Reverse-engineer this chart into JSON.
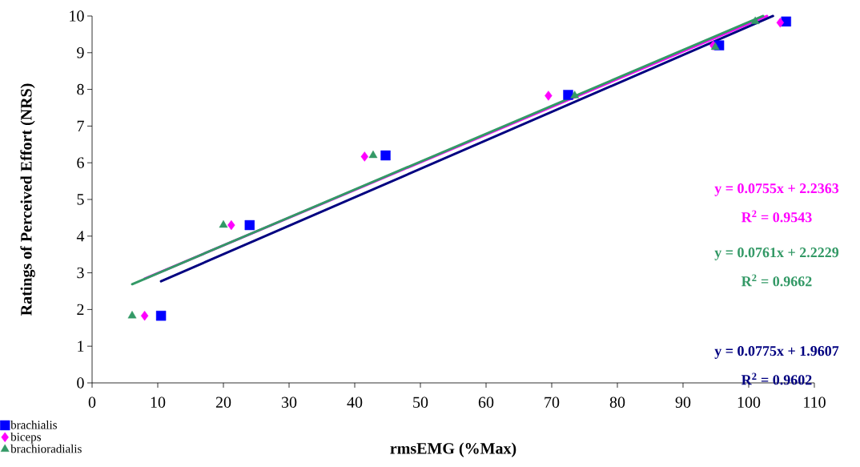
{
  "chart_data": {
    "type": "scatter",
    "xlabel": "rmsEMG (%Max)",
    "ylabel": "Ratings of Perceived Effort (NRS)",
    "xlim": [
      0,
      110
    ],
    "xticks": [
      0,
      10,
      20,
      30,
      40,
      50,
      60,
      70,
      80,
      90,
      100,
      110
    ],
    "ylim": [
      0,
      10
    ],
    "yticks": [
      0,
      1,
      2,
      3,
      4,
      5,
      6,
      7,
      8,
      9,
      10
    ],
    "grid": false,
    "legend": "bottom left",
    "series": [
      {
        "name": "brachialis",
        "marker": "square",
        "color": "#0000ff",
        "x": [
          10.5,
          24,
          44.7,
          72.5,
          95.5,
          105.7
        ],
        "values": [
          1.83,
          4.3,
          6.2,
          7.85,
          9.2,
          9.85
        ]
      },
      {
        "name": "biceps",
        "marker": "diamond",
        "color": "#ff00ff",
        "x": [
          8,
          21.2,
          41.5,
          69.5,
          94.6,
          104.8
        ],
        "values": [
          1.83,
          4.3,
          6.17,
          7.83,
          9.2,
          9.82
        ]
      },
      {
        "name": "brachioradialis",
        "marker": "triangle",
        "color": "#339966",
        "x": [
          6.1,
          20,
          42.8,
          73.5,
          94.9,
          101
        ],
        "values": [
          1.83,
          4.3,
          6.2,
          7.83,
          9.15,
          9.85
        ]
      },
      {
        "type": "line",
        "marker": "none",
        "color": "#ff00ff",
        "x": [
          8,
          102.8
        ],
        "values": [
          2.84,
          10.0
        ]
      },
      {
        "type": "line",
        "marker": "none",
        "color": "#339966",
        "x": [
          6.1,
          102.2
        ],
        "values": [
          2.69,
          10.0
        ]
      },
      {
        "type": "line",
        "marker": "none",
        "color": "#000080",
        "x": [
          10.5,
          103.7
        ],
        "values": [
          2.77,
          10.0
        ]
      }
    ],
    "annotations": [
      "y = 0.0755x + 2.2363",
      "R$^{2}$ = 0.9543",
      "y = 0.0761x + 2.2229",
      "R$^{2}$ = 0.9662",
      "y = 0.0775x + 1.9607",
      "R$^{2}$ = 0.9602"
    ]
  }
}
